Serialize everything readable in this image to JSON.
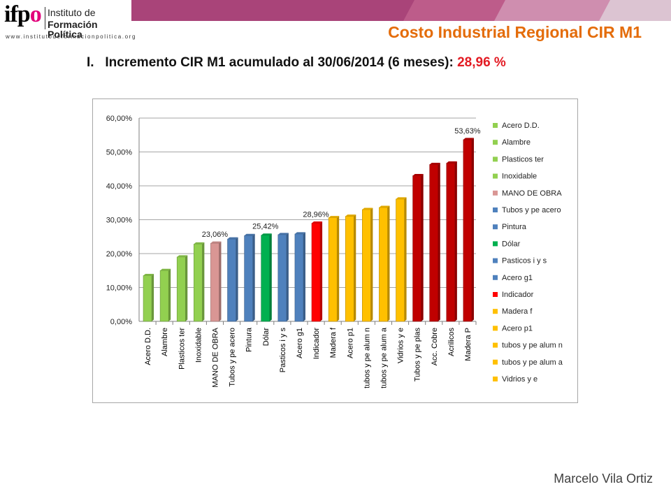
{
  "header": {
    "logo": {
      "mark": "ifpo",
      "line1": "Instituto de",
      "line2": "Formación Política",
      "url": "www.institutodeformacionpolitica.org"
    },
    "slide_title": "Costo Industrial Regional CIR M1",
    "subtitle_prefix": "I.   Incremento CIR M1 acumulado al 30/06/2014 (6 meses): ",
    "subtitle_value": "28,96 %",
    "colors": {
      "band1": "#a94479",
      "band2": "#bd5c8a",
      "band3": "#cf8eaf",
      "band4": "#dcc4d2",
      "title": "#e46c0a",
      "highlight": "#e31b23"
    }
  },
  "footer": {
    "author": "Marcelo Vila Ortiz"
  },
  "chart_data": {
    "type": "bar",
    "title": "",
    "xlabel": "",
    "ylabel": "",
    "ylim": [
      0,
      60
    ],
    "y_ticks": [
      "0,00%",
      "10,00%",
      "20,00%",
      "30,00%",
      "40,00%",
      "50,00%",
      "60,00%"
    ],
    "grid": true,
    "legend_position": "right",
    "categories": [
      "Acero D.D.",
      "Alambre",
      "Plasticos ter",
      "Inoxidable",
      "MANO DE OBRA",
      "Tubos y pe acero",
      "Pintura",
      "Dólar",
      "Pasticos i y s",
      "Acero g1",
      "Indicador",
      "Madera f",
      "Acero p1",
      "tubos y pe alum n",
      "tubos y pe alum a",
      "Vidrios y e",
      "Tubos y pe plas",
      "Acc. Cobre",
      "Acrilicos",
      "Madera P"
    ],
    "values": [
      13.5,
      15.0,
      19.0,
      22.8,
      23.06,
      24.3,
      25.3,
      25.42,
      25.6,
      25.8,
      28.96,
      30.6,
      31.0,
      33.0,
      33.6,
      36.1,
      43.0,
      46.3,
      46.7,
      53.63
    ],
    "bar_colors": [
      "#92d050",
      "#92d050",
      "#92d050",
      "#92d050",
      "#d99694",
      "#4f81bd",
      "#4f81bd",
      "#00b050",
      "#4f81bd",
      "#4f81bd",
      "#ff0000",
      "#ffc000",
      "#ffc000",
      "#ffc000",
      "#ffc000",
      "#ffc000",
      "#c00000",
      "#c00000",
      "#c00000",
      "#c00000"
    ],
    "data_labels": [
      {
        "index": 4,
        "text": "23,06%"
      },
      {
        "index": 7,
        "text": "25,42%"
      },
      {
        "index": 10,
        "text": "28,96%"
      },
      {
        "index": 19,
        "text": "53,63%"
      }
    ],
    "legend": [
      {
        "label": "Acero D.D.",
        "color": "#92d050"
      },
      {
        "label": "Alambre",
        "color": "#92d050"
      },
      {
        "label": "Plasticos ter",
        "color": "#92d050"
      },
      {
        "label": "Inoxidable",
        "color": "#92d050"
      },
      {
        "label": "MANO DE OBRA",
        "color": "#d99694"
      },
      {
        "label": "Tubos y pe acero",
        "color": "#4f81bd"
      },
      {
        "label": "Pintura",
        "color": "#4f81bd"
      },
      {
        "label": "Dólar",
        "color": "#00b050"
      },
      {
        "label": "Pasticos i y s",
        "color": "#4f81bd"
      },
      {
        "label": "Acero g1",
        "color": "#4f81bd"
      },
      {
        "label": "Indicador",
        "color": "#ff0000"
      },
      {
        "label": "Madera f",
        "color": "#ffc000"
      },
      {
        "label": "Acero p1",
        "color": "#ffc000"
      },
      {
        "label": "tubos y pe alum n",
        "color": "#ffc000"
      },
      {
        "label": "tubos y pe alum a",
        "color": "#ffc000"
      },
      {
        "label": "Vidrios y e",
        "color": "#ffc000"
      }
    ]
  }
}
